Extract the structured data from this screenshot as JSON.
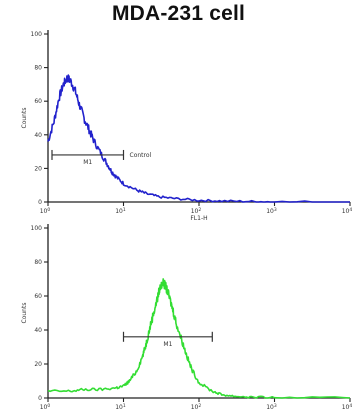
{
  "chart_data": [
    {
      "type": "line",
      "title": "MDA-231 cell",
      "series": [
        {
          "name": "",
          "color": "#2222cc",
          "x": [
            1,
            1.2,
            1.4,
            1.6,
            1.8,
            2,
            2.3,
            2.6,
            3,
            3.5,
            4,
            5,
            6,
            7,
            8,
            10,
            15,
            20,
            30,
            50,
            100,
            200,
            500,
            1000,
            10000
          ],
          "y": [
            36,
            48,
            62,
            70,
            74,
            72,
            66,
            58,
            50,
            43,
            37,
            29,
            23,
            18,
            15,
            11,
            7,
            5,
            3,
            2,
            1,
            0.6,
            0.3,
            0.1,
            0
          ]
        }
      ],
      "xlabel": "FL1-H",
      "ylabel": "Counts",
      "xlim": [
        1,
        10000
      ],
      "ylim": [
        0,
        100
      ],
      "x_scale": "log",
      "gate": {
        "label": "M1",
        "range": [
          1,
          10
        ],
        "y": 28
      },
      "annotation": "Control"
    },
    {
      "type": "line",
      "series": [
        {
          "name": "",
          "color": "#33dd33",
          "x": [
            1,
            2,
            3,
            5,
            8,
            10,
            12,
            15,
            18,
            20,
            22,
            25,
            28,
            30,
            33,
            36,
            40,
            45,
            50,
            60,
            70,
            80,
            100,
            150,
            200,
            300,
            500,
            1000,
            10000
          ],
          "y": [
            4,
            4,
            5,
            5,
            6,
            7,
            10,
            16,
            25,
            32,
            40,
            50,
            58,
            64,
            68,
            66,
            60,
            52,
            44,
            33,
            24,
            17,
            9,
            4,
            2,
            1,
            0.5,
            0.2,
            0
          ]
        }
      ],
      "xlabel": "",
      "ylabel": "Counts",
      "xlim": [
        1,
        10000
      ],
      "ylim": [
        0,
        100
      ],
      "x_scale": "log",
      "gate": {
        "label": "M1",
        "range": [
          10,
          150
        ],
        "y": 36
      }
    }
  ]
}
